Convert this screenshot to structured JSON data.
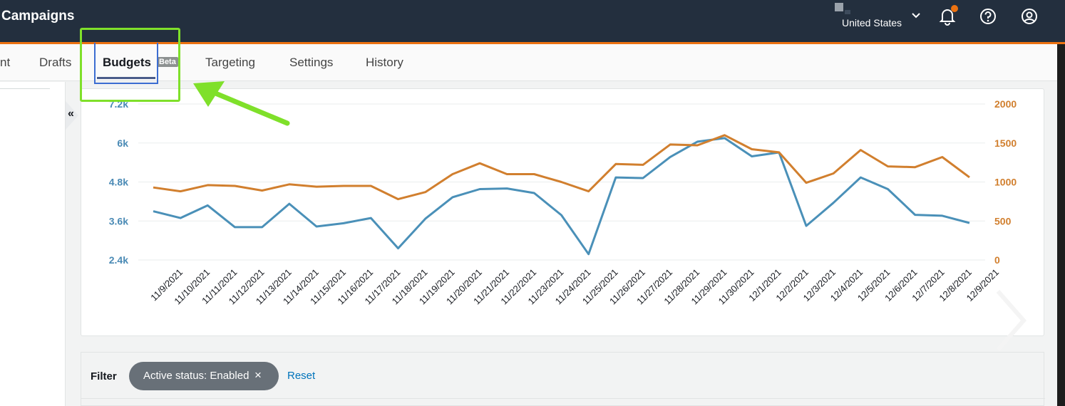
{
  "header": {
    "title": "Campaigns",
    "country": "United States",
    "icons": [
      "chevron-down-icon",
      "bell-icon",
      "help-icon",
      "account-icon"
    ],
    "accent": "#ec7211",
    "background": "#232f3e"
  },
  "tabs": [
    {
      "label": "nt"
    },
    {
      "label": "Drafts"
    },
    {
      "label": "Budgets"
    },
    {
      "label": "Targeting"
    },
    {
      "label": "Settings"
    },
    {
      "label": "History"
    }
  ],
  "beta_badge": "Beta",
  "collapse_label": "«",
  "chart_data": {
    "type": "line",
    "categories": [
      "11/9/2021",
      "11/10/2021",
      "11/11/2021",
      "11/12/2021",
      "11/13/2021",
      "11/14/2021",
      "11/15/2021",
      "11/16/2021",
      "11/17/2021",
      "11/18/2021",
      "11/19/2021",
      "11/20/2021",
      "11/21/2021",
      "11/22/2021",
      "11/23/2021",
      "11/24/2021",
      "11/25/2021",
      "11/26/2021",
      "11/27/2021",
      "11/28/2021",
      "11/29/2021",
      "11/30/2021",
      "12/1/2021",
      "12/2/2021",
      "12/3/2021",
      "12/4/2021",
      "12/5/2021",
      "12/6/2021",
      "12/7/2021",
      "12/8/2021",
      "12/9/2021"
    ],
    "series": [
      {
        "axis": "left",
        "color": "#4a90b8",
        "values": [
          3900,
          3690,
          4080,
          3410,
          3410,
          4130,
          3430,
          3530,
          3690,
          2760,
          3670,
          4330,
          4580,
          4600,
          4460,
          3780,
          2580,
          4940,
          4920,
          5570,
          6040,
          6150,
          5590,
          5710,
          3450,
          4160,
          4940,
          4580,
          3790,
          3760,
          3540
        ]
      },
      {
        "axis": "right",
        "color": "#d17f2e",
        "values": [
          930,
          880,
          960,
          950,
          890,
          970,
          940,
          950,
          950,
          780,
          870,
          1100,
          1240,
          1100,
          1100,
          1000,
          880,
          1230,
          1220,
          1480,
          1470,
          1600,
          1420,
          1380,
          990,
          1110,
          1410,
          1200,
          1190,
          1320,
          1060
        ]
      }
    ],
    "y_left": {
      "ticks": [
        "7.2k",
        "6k",
        "4.8k",
        "3.6k",
        "2.4k"
      ],
      "range": [
        2400,
        7200
      ]
    },
    "y_right": {
      "ticks": [
        "2000",
        "1500",
        "1000",
        "500",
        "0"
      ],
      "range": [
        0,
        2000
      ]
    },
    "grid": true
  },
  "filter": {
    "label": "Filter",
    "chip": "Active status: Enabled",
    "chip_close": "×",
    "reset": "Reset"
  }
}
